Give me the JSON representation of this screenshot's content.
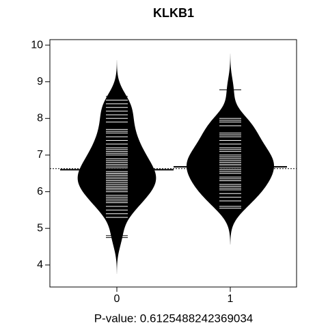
{
  "chart_data": {
    "type": "beanplot",
    "title": "KLKB1",
    "xlabel": "P-value: 0.6125488242369034",
    "categories": [
      "0",
      "1"
    ],
    "observations": [
      [
        4.75,
        4.8,
        5.3,
        5.4,
        5.5,
        5.6,
        5.7,
        5.75,
        5.8,
        5.85,
        5.9,
        6.0,
        6.05,
        6.1,
        6.1,
        6.15,
        6.2,
        6.25,
        6.3,
        6.3,
        6.35,
        6.4,
        6.45,
        6.5,
        6.5,
        6.55,
        6.6,
        6.65,
        6.7,
        6.75,
        6.8,
        6.85,
        6.9,
        7.0,
        7.05,
        7.1,
        7.15,
        7.2,
        7.3,
        7.4,
        7.5,
        7.6,
        7.65,
        7.7,
        7.9,
        8.0,
        8.1,
        8.2,
        8.3,
        8.4,
        8.5,
        8.6
      ],
      [
        5.55,
        5.6,
        5.75,
        5.85,
        5.95,
        6.05,
        6.1,
        6.15,
        6.2,
        6.3,
        6.35,
        6.4,
        6.5,
        6.55,
        6.6,
        6.65,
        6.7,
        6.75,
        6.8,
        6.85,
        6.9,
        6.95,
        7.0,
        7.1,
        7.15,
        7.2,
        7.3,
        7.4,
        7.5,
        7.55,
        7.6,
        7.8,
        7.9,
        7.95,
        8.0,
        8.78
      ]
    ],
    "means": [
      6.6,
      6.68
    ],
    "overall_mean": 6.63,
    "color": "#000000",
    "ylim": [
      3.4,
      10.15
    ],
    "yticks": [
      4,
      5,
      6,
      7,
      8,
      9,
      10
    ]
  }
}
